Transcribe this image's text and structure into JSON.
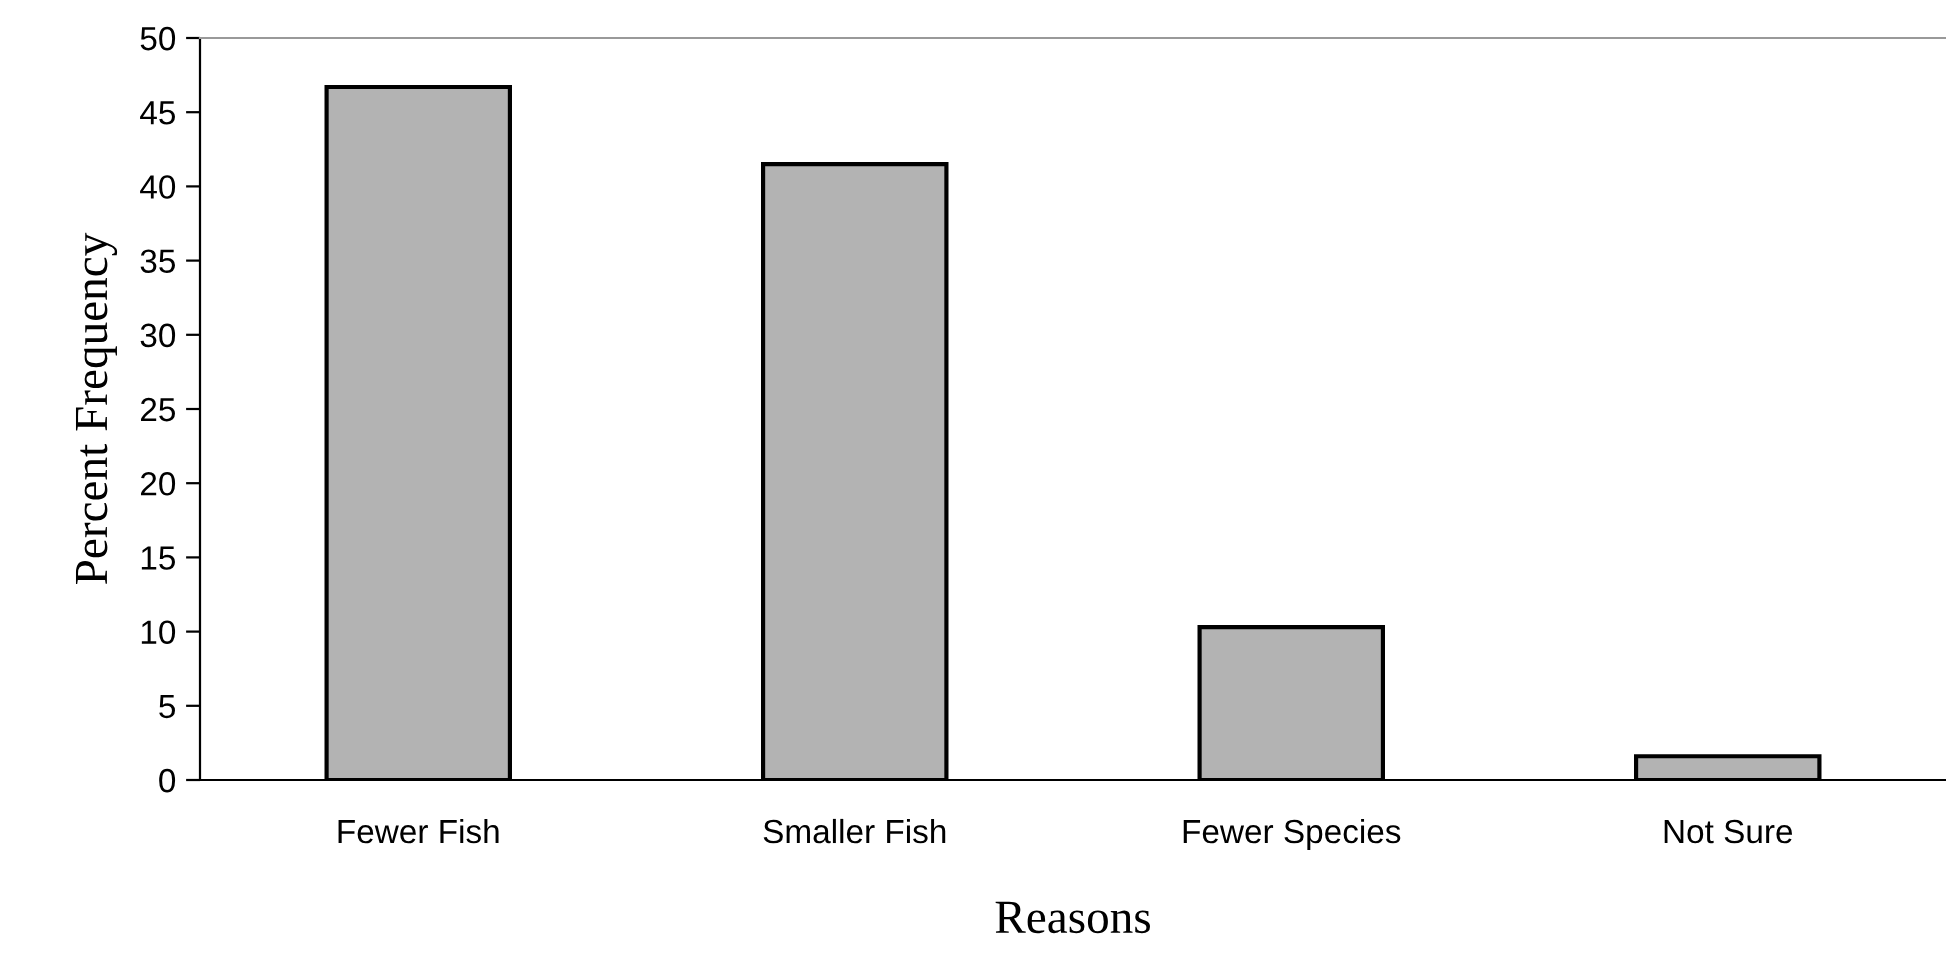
{
  "chart_data": {
    "type": "bar",
    "xlabel": "Reasons",
    "ylabel": "Percent Frequency",
    "categories": [
      "Fewer Fish",
      "Smaller Fish",
      "Fewer Species",
      "Not Sure"
    ],
    "values": [
      46.7,
      41.5,
      10.3,
      1.6
    ],
    "color": "#b3b3b3",
    "ylim": [
      0,
      50
    ],
    "yticks": [
      0,
      5,
      10,
      15,
      20,
      25,
      30,
      35,
      40,
      45,
      50
    ],
    "grid": false,
    "legend": false
  }
}
